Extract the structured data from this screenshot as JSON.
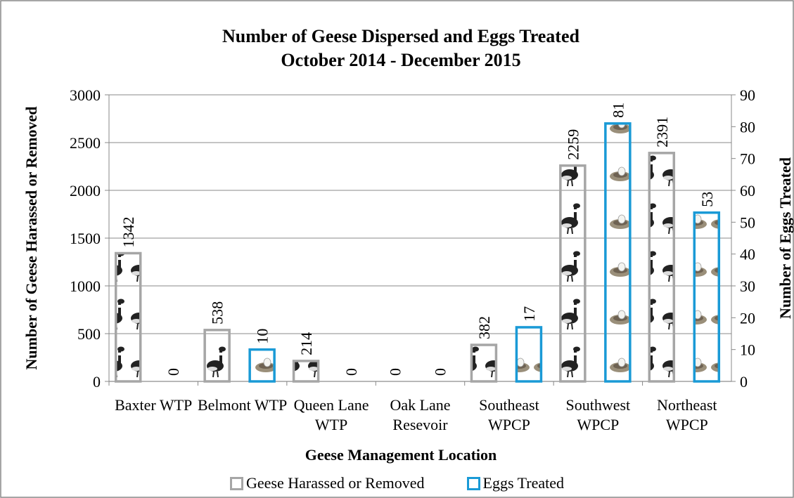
{
  "chart_data": {
    "type": "bar",
    "title": "Number of Geese Dispersed and Eggs Treated",
    "subtitle": "October 2014 - December 2015",
    "x_label": "Geese Management Location",
    "y_label": "Number of Geese Harassed or Removed",
    "y2_label": "Number of Eggs Treated",
    "categories": [
      "Baxter WTP",
      "Belmont WTP",
      "Queen Lane WTP",
      "Oak Lane Resevoir",
      "Southeast WPCP",
      "Southwest WPCP",
      "Northeast WPCP"
    ],
    "series": [
      {
        "name": "Geese Harassed or Removed",
        "color": "#a6a6a6",
        "values": [
          1342,
          538,
          214,
          0,
          382,
          2259,
          2391
        ]
      },
      {
        "name": "Eggs Treated",
        "color": "#1a9ad6",
        "axis": "y2",
        "values": [
          0,
          10,
          0,
          0,
          17,
          81,
          53
        ]
      }
    ],
    "ylim": [
      0,
      3000
    ],
    "yticks": [
      0,
      500,
      1000,
      1500,
      2000,
      2500,
      3000
    ],
    "y2lim": [
      0,
      90
    ],
    "y2ticks": [
      0,
      10,
      20,
      30,
      40,
      50,
      60,
      70,
      80,
      90
    ],
    "grid": true
  }
}
